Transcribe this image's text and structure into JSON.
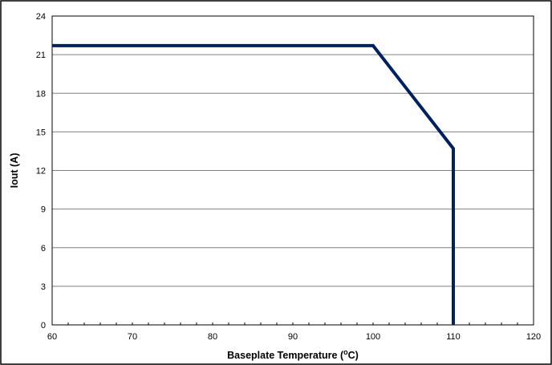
{
  "chart_data": {
    "type": "line",
    "title": "",
    "xlabel": "Baseplate Temperature (",
    "xlabel_sup": "o",
    "xlabel_end": "C)",
    "ylabel": "Iout (A)",
    "xlim": [
      60,
      120
    ],
    "ylim": [
      0,
      24
    ],
    "x_ticks": [
      "60",
      "70",
      "80",
      "90",
      "100",
      "110",
      "120"
    ],
    "y_ticks": [
      "0",
      "3",
      "6",
      "9",
      "12",
      "15",
      "18",
      "21",
      "24"
    ],
    "grid": "horizontal",
    "legend": "none",
    "series": [
      {
        "color": "#002060",
        "points": [
          {
            "x": 60,
            "y": 21.7
          },
          {
            "x": 100,
            "y": 21.7
          },
          {
            "x": 110,
            "y": 13.7
          },
          {
            "x": 110,
            "y": 0
          }
        ]
      }
    ]
  },
  "colors": {
    "series_line": "#002060",
    "grid": "#808080",
    "frame": "#000000"
  }
}
